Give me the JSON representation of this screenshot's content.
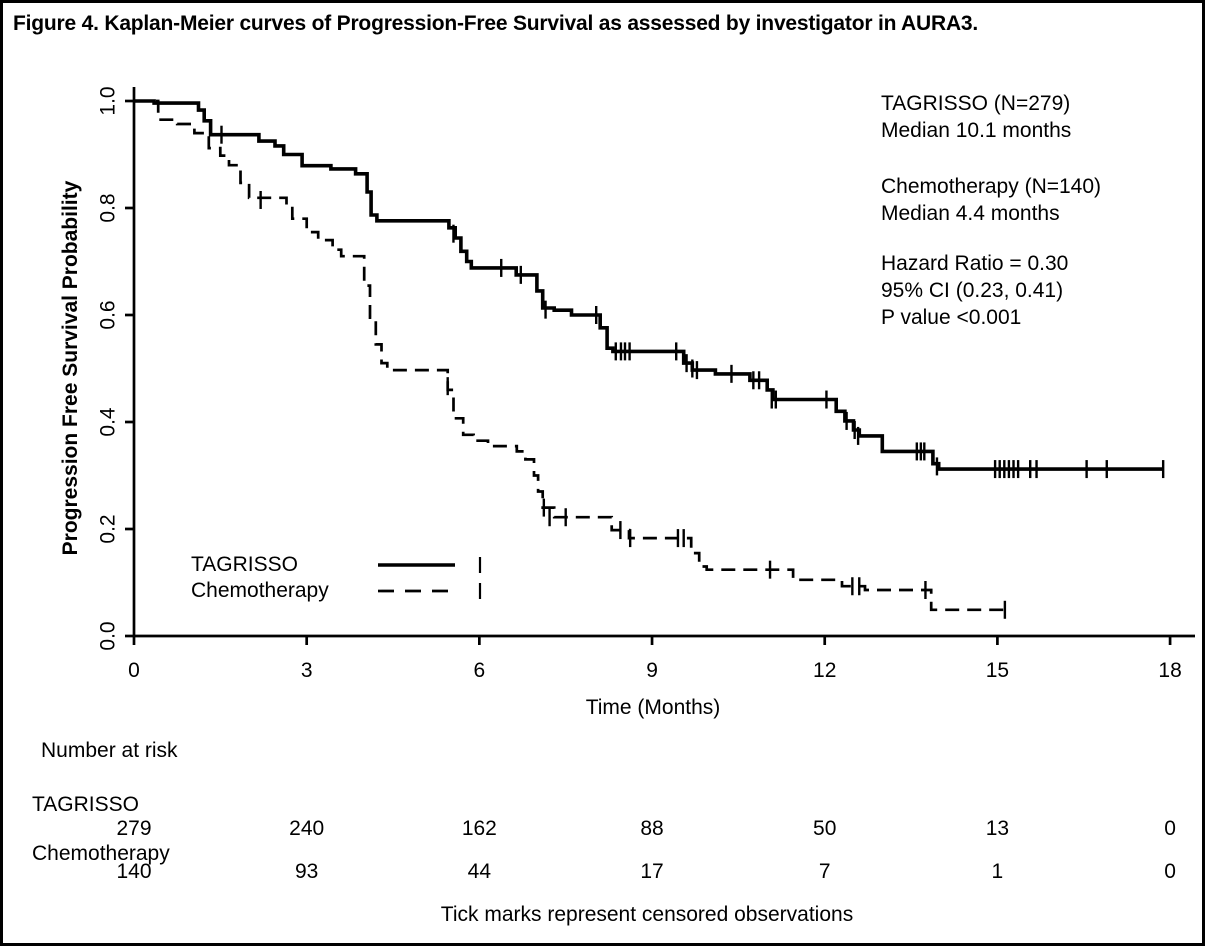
{
  "title": "Figure 4. Kaplan-Meier curves of Progression-Free Survival as assessed by investigator in AURA3.",
  "colors": {
    "foreground": "#000000",
    "background": "#ffffff"
  },
  "axes": {
    "x_label": "Time (Months)",
    "y_label": "Progression Free Survival Probability"
  },
  "annotation": {
    "lines": [
      "TAGRISSO (N=279)",
      "Median 10.1 months",
      "Chemotherapy (N=140)",
      "Median 4.4 months",
      "Hazard Ratio = 0.30",
      "95% CI (0.23, 0.41)",
      "P value <0.001"
    ]
  },
  "risk_table": {
    "header": "Number at risk",
    "rows": [
      {
        "label": "TAGRISSO",
        "values": [
          "279",
          "240",
          "162",
          "88",
          "50",
          "13",
          "0"
        ]
      },
      {
        "label": "Chemotherapy",
        "values": [
          "140",
          "93",
          "44",
          "17",
          "7",
          "1",
          "0"
        ]
      }
    ]
  },
  "footer": "Tick marks represent censored observations",
  "chart_data": {
    "type": "line",
    "subtype": "kaplan-meier-step",
    "title": "Figure 4. Kaplan-Meier curves of Progression-Free Survival as assessed by investigator in AURA3.",
    "xlabel": "Time (Months)",
    "ylabel": "Progression Free Survival Probability",
    "xlim": [
      0,
      18
    ],
    "ylim": [
      0.0,
      1.0
    ],
    "xticks": [
      "0",
      "3",
      "6",
      "9",
      "12",
      "15",
      "18"
    ],
    "yticks": [
      "0.0",
      "0.2",
      "0.4",
      "0.6",
      "0.8",
      "1.0"
    ],
    "grid": false,
    "legend_position": "lower-left-inside",
    "stats": {
      "hazard_ratio": "0.30",
      "ci_95": "(0.23, 0.41)",
      "p_value": "<0.001"
    },
    "series": [
      {
        "name": "TAGRISSO",
        "n": 279,
        "median_months": 10.1,
        "line": "solid",
        "steps": [
          [
            0,
            1.0
          ],
          [
            0.35,
            0.996
          ],
          [
            1.12,
            0.983
          ],
          [
            1.22,
            0.963
          ],
          [
            1.33,
            0.937
          ],
          [
            2.17,
            0.925
          ],
          [
            2.45,
            0.916
          ],
          [
            2.6,
            0.9
          ],
          [
            2.92,
            0.879
          ],
          [
            3.42,
            0.873
          ],
          [
            3.85,
            0.864
          ],
          [
            4.05,
            0.83
          ],
          [
            4.12,
            0.787
          ],
          [
            4.22,
            0.776
          ],
          [
            5.47,
            0.763
          ],
          [
            5.58,
            0.744
          ],
          [
            5.68,
            0.719
          ],
          [
            5.78,
            0.7
          ],
          [
            5.86,
            0.688
          ],
          [
            6.64,
            0.675
          ],
          [
            7.0,
            0.645
          ],
          [
            7.1,
            0.613
          ],
          [
            7.3,
            0.609
          ],
          [
            7.6,
            0.6
          ],
          [
            8.1,
            0.576
          ],
          [
            8.22,
            0.538
          ],
          [
            8.32,
            0.532
          ],
          [
            9.55,
            0.51
          ],
          [
            9.7,
            0.497
          ],
          [
            10.1,
            0.49
          ],
          [
            10.7,
            0.478
          ],
          [
            11.0,
            0.46
          ],
          [
            11.1,
            0.442
          ],
          [
            12.2,
            0.42
          ],
          [
            12.35,
            0.402
          ],
          [
            12.5,
            0.385
          ],
          [
            12.6,
            0.374
          ],
          [
            13.0,
            0.345
          ],
          [
            13.88,
            0.322
          ],
          [
            13.98,
            0.312
          ],
          [
            17.88,
            0.312
          ]
        ],
        "censors": [
          [
            1.52,
            0.937
          ],
          [
            5.55,
            0.752
          ],
          [
            6.38,
            0.688
          ],
          [
            6.72,
            0.675
          ],
          [
            7.15,
            0.61
          ],
          [
            8.03,
            0.6
          ],
          [
            8.37,
            0.532
          ],
          [
            8.46,
            0.532
          ],
          [
            8.53,
            0.532
          ],
          [
            8.61,
            0.532
          ],
          [
            9.42,
            0.532
          ],
          [
            9.6,
            0.51
          ],
          [
            9.7,
            0.5
          ],
          [
            9.78,
            0.497
          ],
          [
            10.38,
            0.49
          ],
          [
            10.76,
            0.478
          ],
          [
            10.86,
            0.478
          ],
          [
            11.08,
            0.442
          ],
          [
            11.15,
            0.442
          ],
          [
            12.03,
            0.442
          ],
          [
            12.38,
            0.402
          ],
          [
            12.52,
            0.385
          ],
          [
            12.58,
            0.374
          ],
          [
            13.6,
            0.345
          ],
          [
            13.67,
            0.345
          ],
          [
            13.73,
            0.345
          ],
          [
            13.95,
            0.317
          ],
          [
            14.96,
            0.312
          ],
          [
            15.04,
            0.312
          ],
          [
            15.12,
            0.312
          ],
          [
            15.2,
            0.312
          ],
          [
            15.28,
            0.312
          ],
          [
            15.36,
            0.312
          ],
          [
            15.57,
            0.312
          ],
          [
            15.68,
            0.312
          ],
          [
            16.55,
            0.312
          ],
          [
            16.9,
            0.312
          ],
          [
            17.88,
            0.312
          ]
        ]
      },
      {
        "name": "Chemotherapy",
        "n": 140,
        "median_months": 4.4,
        "line": "dashed",
        "steps": [
          [
            0,
            1.0
          ],
          [
            0.42,
            0.965
          ],
          [
            0.75,
            0.957
          ],
          [
            1.05,
            0.94
          ],
          [
            1.3,
            0.912
          ],
          [
            1.5,
            0.898
          ],
          [
            1.65,
            0.88
          ],
          [
            1.85,
            0.847
          ],
          [
            2.0,
            0.819
          ],
          [
            2.65,
            0.805
          ],
          [
            2.75,
            0.78
          ],
          [
            3.0,
            0.755
          ],
          [
            3.2,
            0.74
          ],
          [
            3.45,
            0.722
          ],
          [
            3.6,
            0.71
          ],
          [
            4.0,
            0.655
          ],
          [
            4.1,
            0.595
          ],
          [
            4.2,
            0.545
          ],
          [
            4.3,
            0.51
          ],
          [
            4.4,
            0.497
          ],
          [
            5.45,
            0.46
          ],
          [
            5.55,
            0.407
          ],
          [
            5.72,
            0.376
          ],
          [
            5.9,
            0.365
          ],
          [
            6.15,
            0.355
          ],
          [
            6.65,
            0.345
          ],
          [
            6.8,
            0.33
          ],
          [
            6.95,
            0.3
          ],
          [
            7.02,
            0.27
          ],
          [
            7.1,
            0.24
          ],
          [
            7.3,
            0.222
          ],
          [
            8.3,
            0.198
          ],
          [
            8.6,
            0.183
          ],
          [
            9.68,
            0.155
          ],
          [
            9.82,
            0.13
          ],
          [
            9.95,
            0.124
          ],
          [
            11.45,
            0.105
          ],
          [
            12.3,
            0.093
          ],
          [
            12.7,
            0.086
          ],
          [
            13.85,
            0.049
          ],
          [
            15.2,
            0.049
          ]
        ],
        "censors": [
          [
            2.2,
            0.815
          ],
          [
            5.45,
            0.467
          ],
          [
            7.12,
            0.24
          ],
          [
            7.22,
            0.222
          ],
          [
            7.5,
            0.222
          ],
          [
            8.45,
            0.198
          ],
          [
            8.62,
            0.183
          ],
          [
            9.45,
            0.183
          ],
          [
            9.55,
            0.183
          ],
          [
            11.05,
            0.124
          ],
          [
            12.48,
            0.093
          ],
          [
            12.6,
            0.093
          ],
          [
            13.75,
            0.086
          ],
          [
            15.13,
            0.049
          ]
        ]
      }
    ]
  }
}
